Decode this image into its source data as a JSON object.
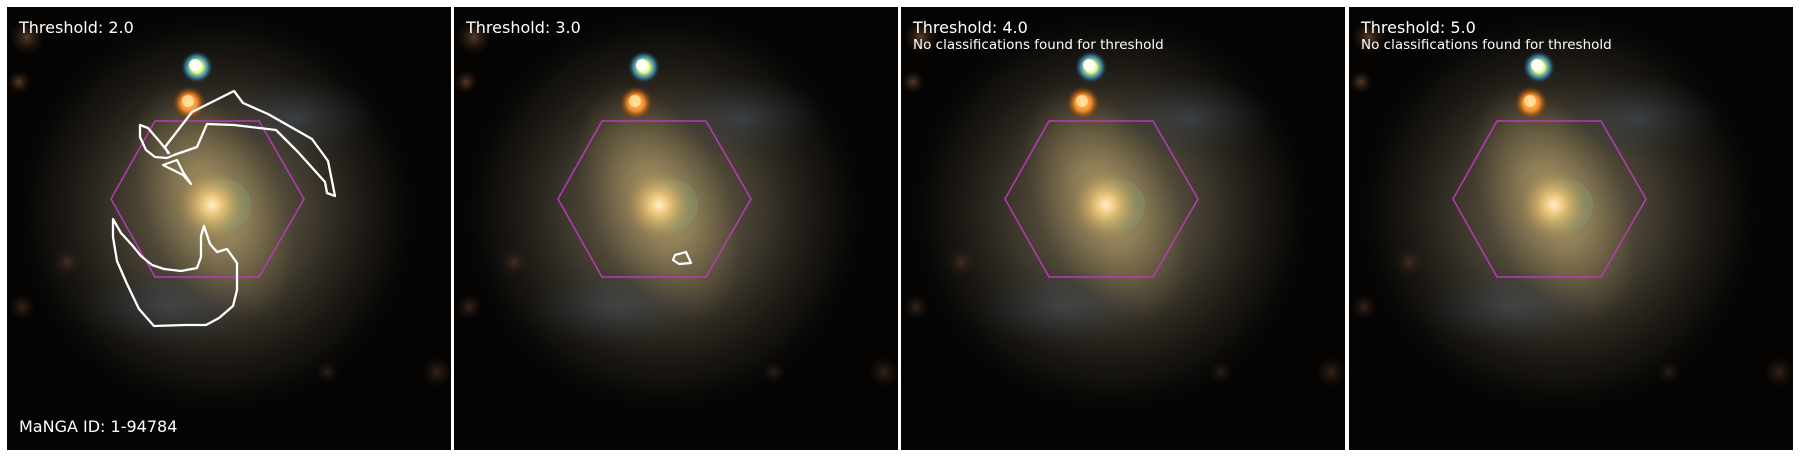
{
  "colors": {
    "hexagon": "#b83ab8",
    "contour": "#ffffff",
    "background": "#050403"
  },
  "panels": [
    {
      "title": "Threshold: 2.0",
      "note": "",
      "manga_id": "MaNGA ID: 1-94784"
    },
    {
      "title": "Threshold: 3.0",
      "note": "",
      "manga_id": ""
    },
    {
      "title": "Threshold: 4.0",
      "note": "No classifications found for threshold",
      "manga_id": ""
    },
    {
      "title": "Threshold: 5.0",
      "note": "No classifications found for threshold",
      "manga_id": ""
    }
  ]
}
